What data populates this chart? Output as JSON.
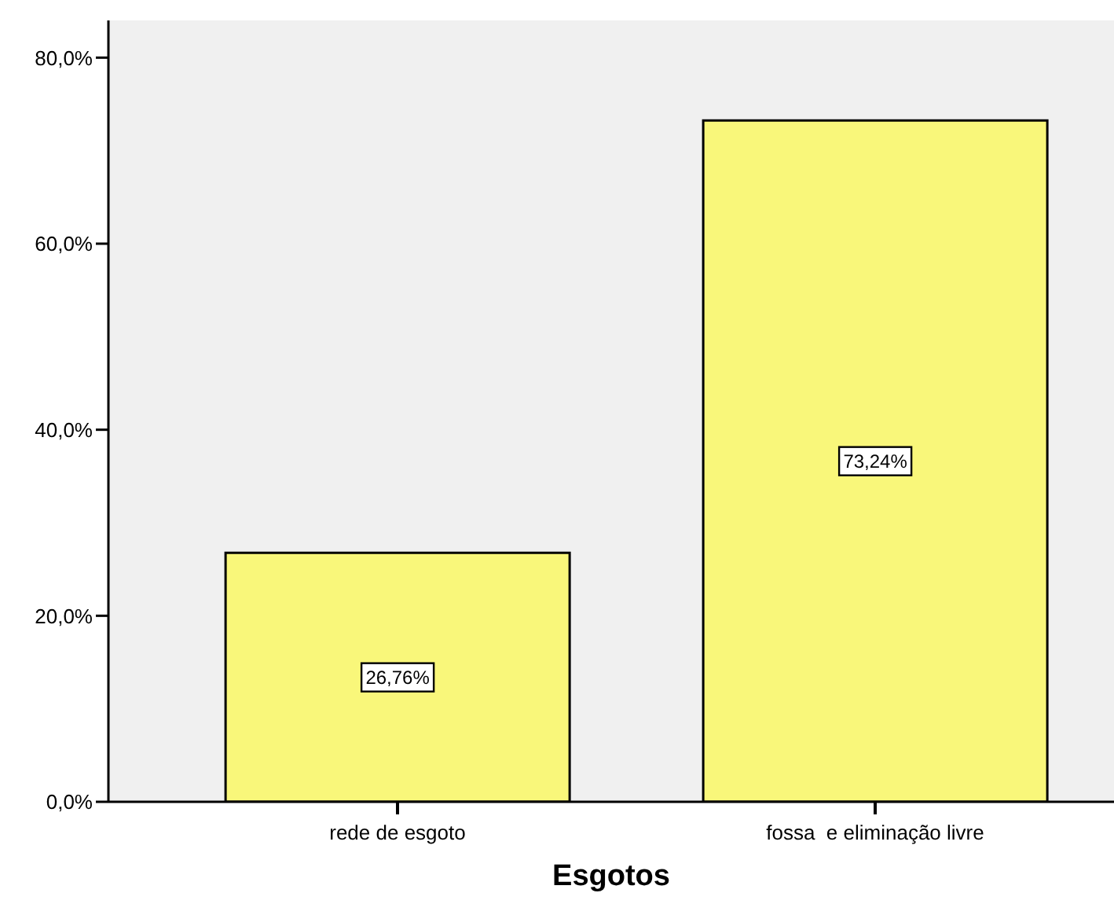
{
  "chart_data": {
    "type": "bar",
    "xlabel": "Esgotos",
    "categories": [
      "rede de esgoto",
      "fossa  e eliminação livre"
    ],
    "values": [
      26.76,
      73.24
    ],
    "color": "#f9f77a",
    "value_labels": [
      "26,76%",
      "73,24%"
    ],
    "ylim": [
      0,
      84
    ],
    "yticks": [
      {
        "value": 0,
        "label": "0,0%"
      },
      {
        "value": 20,
        "label": "20,0%"
      },
      {
        "value": 40,
        "label": "40,0%"
      },
      {
        "value": 60,
        "label": "60,0%"
      },
      {
        "value": 80,
        "label": "80,0%"
      }
    ],
    "grid": false,
    "legend": false
  }
}
